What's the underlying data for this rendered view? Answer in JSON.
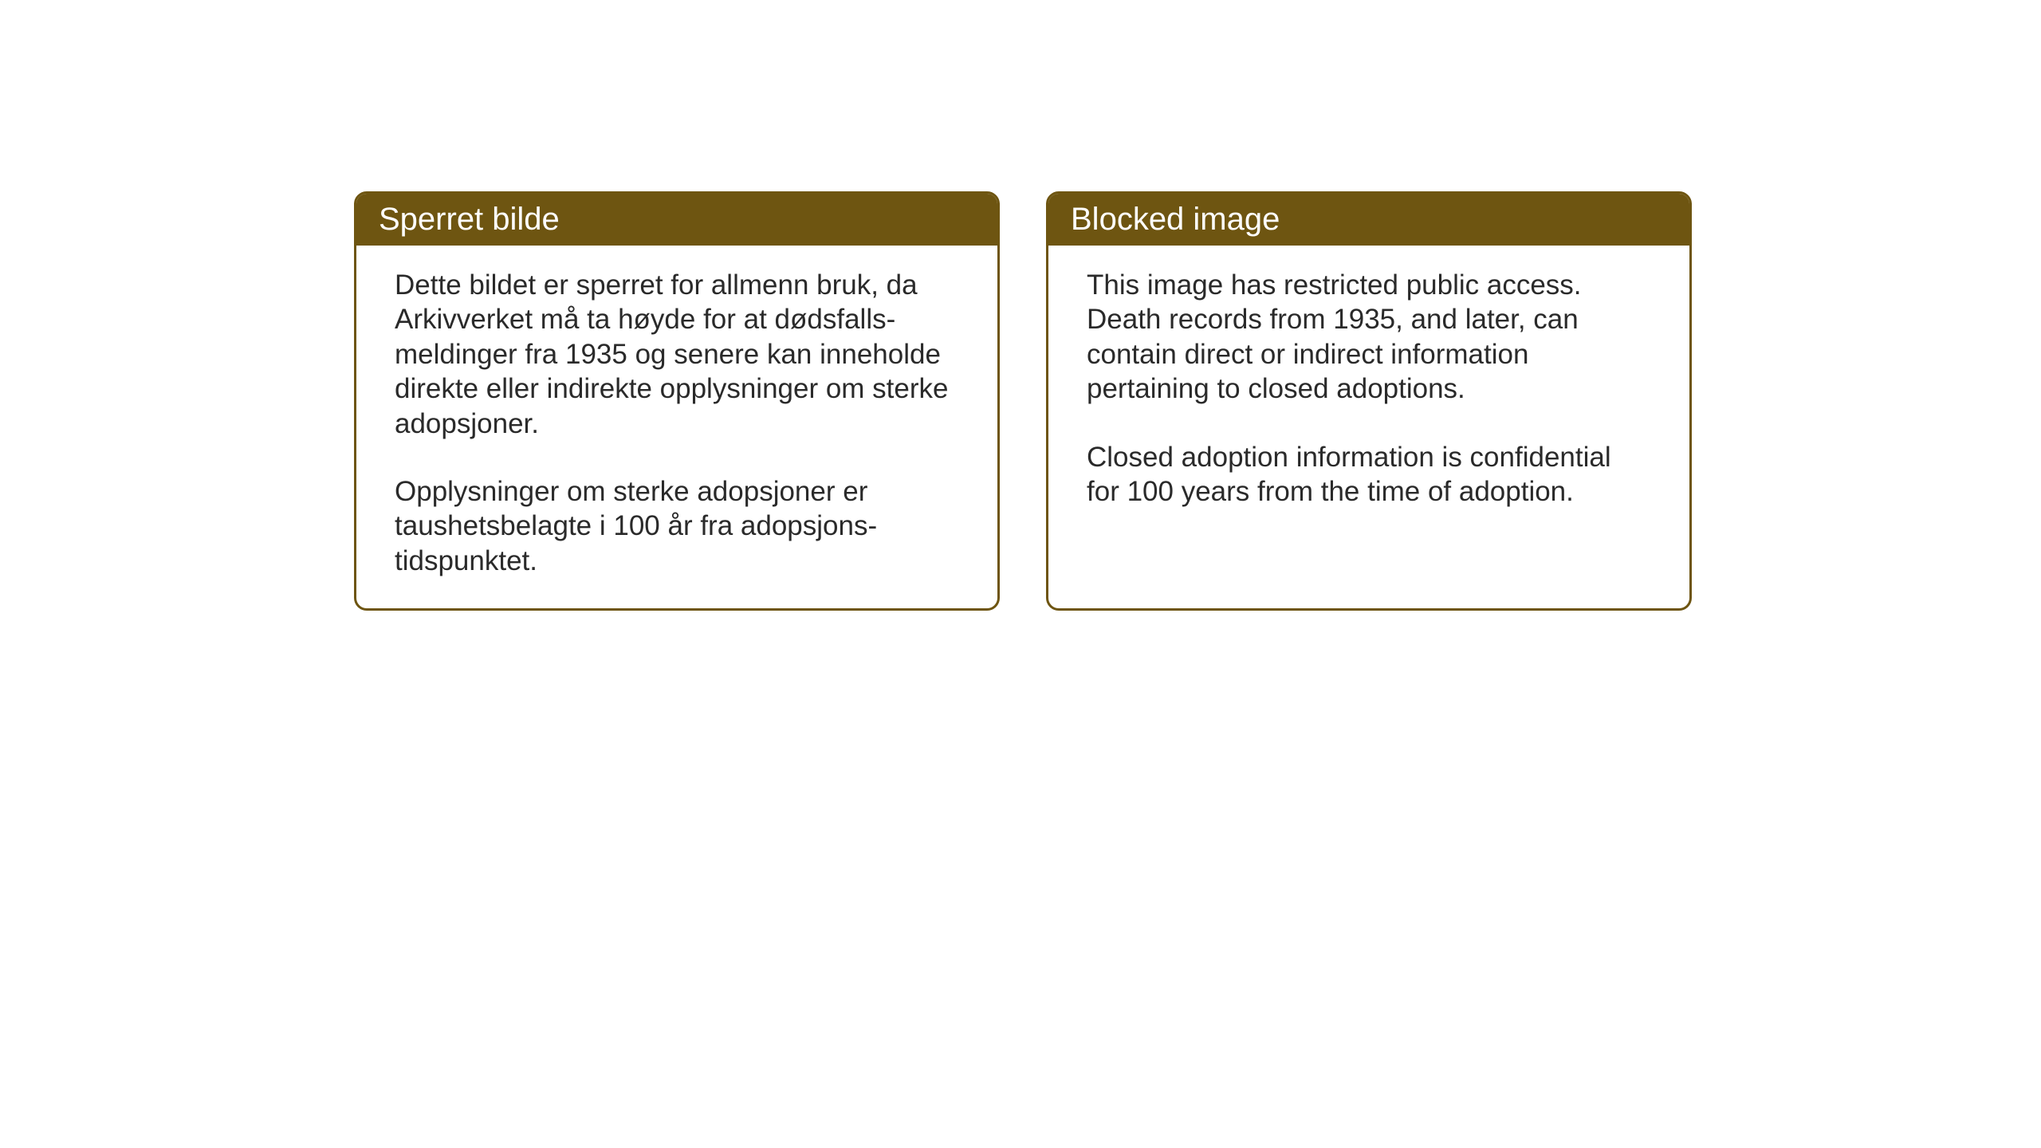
{
  "layout": {
    "background_color": "#ffffff",
    "card_border_color": "#6e5511",
    "header_bg_color": "#6e5511",
    "header_text_color": "#ffffff",
    "body_text_color": "#2a2a2a",
    "header_fontsize": 40,
    "body_fontsize": 35,
    "border_radius": 16,
    "border_width": 3
  },
  "cards": {
    "norwegian": {
      "title": "Sperret bilde",
      "para1": "Dette bildet er sperret for allmenn bruk, da Arkivverket må ta høyde for at dødsfalls-meldinger fra 1935 og senere kan inneholde direkte eller indirekte opplysninger om sterke adopsjoner.",
      "para2": "Opplysninger om sterke adopsjoner er taushetsbelagte i 100 år fra adopsjons-tidspunktet."
    },
    "english": {
      "title": "Blocked image",
      "para1": "This image has restricted public access. Death records from 1935, and later, can contain direct or indirect information pertaining to closed adoptions.",
      "para2": "Closed adoption information is confidential for 100 years from the time of adoption."
    }
  }
}
